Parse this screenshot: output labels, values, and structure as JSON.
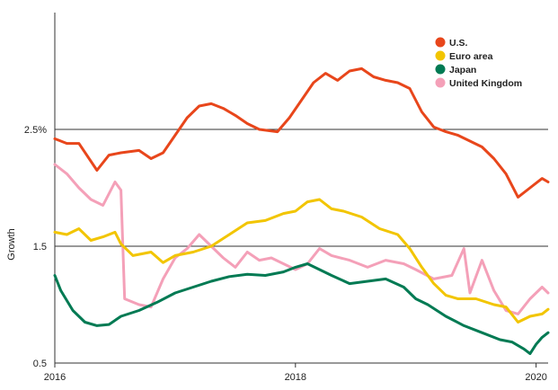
{
  "chart_data": {
    "type": "line",
    "title": "",
    "xlabel": "",
    "ylabel": "Growth",
    "x_ticks": [
      "2016",
      "2018",
      "2020"
    ],
    "y_ticks": [
      "0.5",
      "1.5",
      "2.5%"
    ],
    "ylim": [
      0.5,
      3.5
    ],
    "xlim": [
      2016.0,
      2020.1
    ],
    "grid": "horizontal",
    "legend_placement": "top-right",
    "series": [
      {
        "name": "U.S.",
        "color": "#e8461b",
        "x": [
          2016.0,
          2016.1,
          2016.2,
          2016.35,
          2016.45,
          2016.55,
          2016.7,
          2016.8,
          2016.9,
          2017.0,
          2017.1,
          2017.2,
          2017.3,
          2017.4,
          2017.5,
          2017.6,
          2017.7,
          2017.85,
          2017.95,
          2018.05,
          2018.15,
          2018.25,
          2018.35,
          2018.45,
          2018.55,
          2018.65,
          2018.75,
          2018.85,
          2018.95,
          2019.05,
          2019.15,
          2019.25,
          2019.35,
          2019.45,
          2019.55,
          2019.65,
          2019.75,
          2019.85,
          2019.95,
          2020.05,
          2020.1
        ],
        "y": [
          2.42,
          2.38,
          2.38,
          2.15,
          2.28,
          2.3,
          2.32,
          2.25,
          2.3,
          2.45,
          2.6,
          2.7,
          2.72,
          2.68,
          2.62,
          2.55,
          2.5,
          2.48,
          2.6,
          2.75,
          2.9,
          2.98,
          2.92,
          3.0,
          3.02,
          2.95,
          2.92,
          2.9,
          2.85,
          2.65,
          2.52,
          2.48,
          2.45,
          2.4,
          2.35,
          2.25,
          2.12,
          1.92,
          2.0,
          2.08,
          2.05
        ]
      },
      {
        "name": "Euro area",
        "color": "#f2c500",
        "x": [
          2016.0,
          2016.1,
          2016.2,
          2016.3,
          2016.4,
          2016.5,
          2016.55,
          2016.65,
          2016.8,
          2016.9,
          2017.0,
          2017.15,
          2017.3,
          2017.45,
          2017.6,
          2017.75,
          2017.9,
          2018.0,
          2018.1,
          2018.2,
          2018.3,
          2018.4,
          2018.55,
          2018.7,
          2018.85,
          2018.95,
          2019.05,
          2019.15,
          2019.25,
          2019.35,
          2019.5,
          2019.65,
          2019.75,
          2019.85,
          2019.95,
          2020.05,
          2020.1
        ],
        "y": [
          1.62,
          1.6,
          1.65,
          1.55,
          1.58,
          1.62,
          1.52,
          1.42,
          1.45,
          1.36,
          1.42,
          1.45,
          1.5,
          1.6,
          1.7,
          1.72,
          1.78,
          1.8,
          1.88,
          1.9,
          1.82,
          1.8,
          1.75,
          1.65,
          1.6,
          1.48,
          1.32,
          1.18,
          1.08,
          1.05,
          1.05,
          1.0,
          0.98,
          0.85,
          0.9,
          0.92,
          0.96
        ]
      },
      {
        "name": "Japan",
        "color": "#007a53",
        "x": [
          2016.0,
          2016.05,
          2016.15,
          2016.25,
          2016.35,
          2016.45,
          2016.55,
          2016.7,
          2016.85,
          2017.0,
          2017.15,
          2017.3,
          2017.45,
          2017.6,
          2017.75,
          2017.9,
          2018.0,
          2018.1,
          2018.2,
          2018.3,
          2018.45,
          2018.6,
          2018.75,
          2018.9,
          2019.0,
          2019.1,
          2019.25,
          2019.4,
          2019.55,
          2019.7,
          2019.8,
          2019.9,
          2019.95,
          2020.0,
          2020.05,
          2020.1
        ],
        "y": [
          1.25,
          1.12,
          0.95,
          0.85,
          0.82,
          0.83,
          0.9,
          0.95,
          1.02,
          1.1,
          1.15,
          1.2,
          1.24,
          1.26,
          1.25,
          1.28,
          1.32,
          1.35,
          1.3,
          1.25,
          1.18,
          1.2,
          1.22,
          1.15,
          1.05,
          1.0,
          0.9,
          0.82,
          0.76,
          0.7,
          0.68,
          0.62,
          0.58,
          0.66,
          0.72,
          0.76
        ]
      },
      {
        "name": "United Kingdom",
        "color": "#f4a0b8",
        "x": [
          2016.0,
          2016.1,
          2016.2,
          2016.3,
          2016.4,
          2016.5,
          2016.55,
          2016.58,
          2016.7,
          2016.8,
          2016.9,
          2017.0,
          2017.1,
          2017.2,
          2017.3,
          2017.4,
          2017.5,
          2017.6,
          2017.7,
          2017.8,
          2017.9,
          2018.0,
          2018.1,
          2018.2,
          2018.3,
          2018.45,
          2018.6,
          2018.75,
          2018.9,
          2019.0,
          2019.15,
          2019.3,
          2019.4,
          2019.45,
          2019.55,
          2019.65,
          2019.75,
          2019.85,
          2019.95,
          2020.05,
          2020.1
        ],
        "y": [
          2.2,
          2.12,
          2.0,
          1.9,
          1.85,
          2.05,
          1.98,
          1.05,
          1.0,
          0.98,
          1.22,
          1.4,
          1.48,
          1.6,
          1.5,
          1.4,
          1.32,
          1.45,
          1.38,
          1.4,
          1.35,
          1.3,
          1.35,
          1.48,
          1.42,
          1.38,
          1.32,
          1.38,
          1.35,
          1.3,
          1.22,
          1.25,
          1.48,
          1.1,
          1.38,
          1.12,
          0.95,
          0.92,
          1.05,
          1.15,
          1.1
        ]
      }
    ]
  }
}
